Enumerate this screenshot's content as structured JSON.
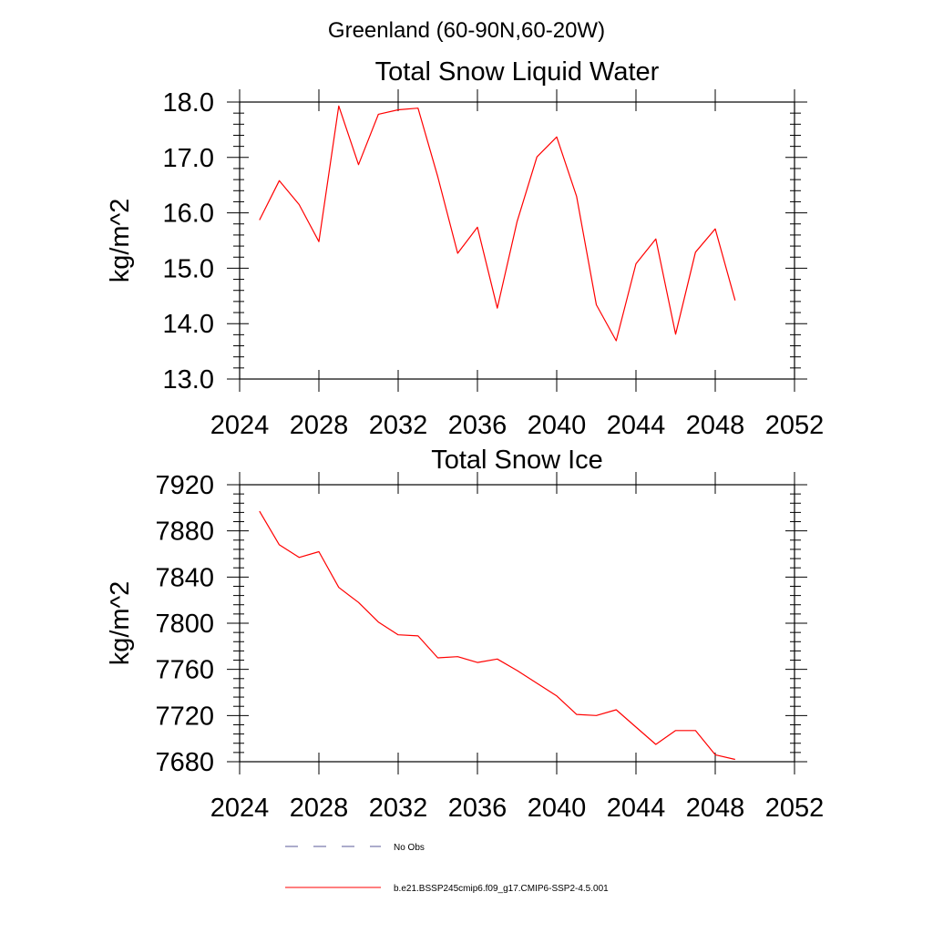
{
  "figure": {
    "suptitle": "Greenland (60-90N,60-20W)"
  },
  "chart_data": [
    {
      "type": "line",
      "title": "Total Snow Liquid Water",
      "xlabel": "",
      "ylabel": "kg/m^2",
      "xlim": [
        2024,
        2052
      ],
      "ylim": [
        13.0,
        18.0
      ],
      "xticks": [
        2024,
        2028,
        2032,
        2036,
        2040,
        2044,
        2048,
        2052
      ],
      "yticks": [
        13.0,
        14.0,
        15.0,
        16.0,
        17.0,
        18.0
      ],
      "ytick_labels": [
        "13.0",
        "14.0",
        "15.0",
        "16.0",
        "17.0",
        "18.0"
      ],
      "grid": false,
      "series": [
        {
          "name": "b.e21.BSSP245cmip6.f09_g17.CMIP6-SSP2-4.5.001",
          "color": "#ff0000",
          "x": [
            2025,
            2026,
            2027,
            2028,
            2029,
            2030,
            2031,
            2032,
            2033,
            2034,
            2035,
            2036,
            2037,
            2038,
            2039,
            2040,
            2041,
            2042,
            2043,
            2044,
            2045,
            2046,
            2047,
            2048,
            2049
          ],
          "y": [
            15.87,
            16.58,
            16.15,
            15.48,
            17.93,
            16.87,
            17.78,
            17.86,
            17.89,
            16.65,
            15.27,
            15.74,
            14.28,
            15.84,
            17.01,
            17.37,
            16.3,
            14.34,
            13.69,
            15.08,
            15.53,
            13.81,
            15.29,
            15.71,
            14.42
          ]
        }
      ]
    },
    {
      "type": "line",
      "title": "Total Snow Ice",
      "xlabel": "",
      "ylabel": "kg/m^2",
      "xlim": [
        2024,
        2052
      ],
      "ylim": [
        7680,
        7920
      ],
      "xticks": [
        2024,
        2028,
        2032,
        2036,
        2040,
        2044,
        2048,
        2052
      ],
      "yticks": [
        7680,
        7720,
        7760,
        7800,
        7840,
        7880,
        7920
      ],
      "ytick_labels": [
        "7680",
        "7720",
        "7760",
        "7800",
        "7840",
        "7880",
        "7920"
      ],
      "grid": false,
      "series": [
        {
          "name": "b.e21.BSSP245cmip6.f09_g17.CMIP6-SSP2-4.5.001",
          "color": "#ff0000",
          "x": [
            2025,
            2026,
            2027,
            2028,
            2029,
            2030,
            2031,
            2032,
            2033,
            2034,
            2035,
            2036,
            2037,
            2038,
            2039,
            2040,
            2041,
            2042,
            2043,
            2044,
            2045,
            2046,
            2047,
            2048,
            2049
          ],
          "y": [
            7897,
            7868,
            7857,
            7862,
            7831,
            7818,
            7801,
            7790,
            7789,
            7770,
            7771,
            7766,
            7769,
            7759,
            7748,
            7737,
            7721,
            7720,
            7725,
            7710,
            7695,
            7707,
            7707,
            7686,
            7682
          ]
        }
      ]
    }
  ],
  "legend": {
    "placement": "bottom",
    "items": [
      {
        "label": "No Obs",
        "style": "dashed",
        "color": "#5a5a9a"
      },
      {
        "label": "b.e21.BSSP245cmip6.f09_g17.CMIP6-SSP2-4.5.001",
        "style": "solid",
        "color": "#ff0000"
      }
    ]
  }
}
